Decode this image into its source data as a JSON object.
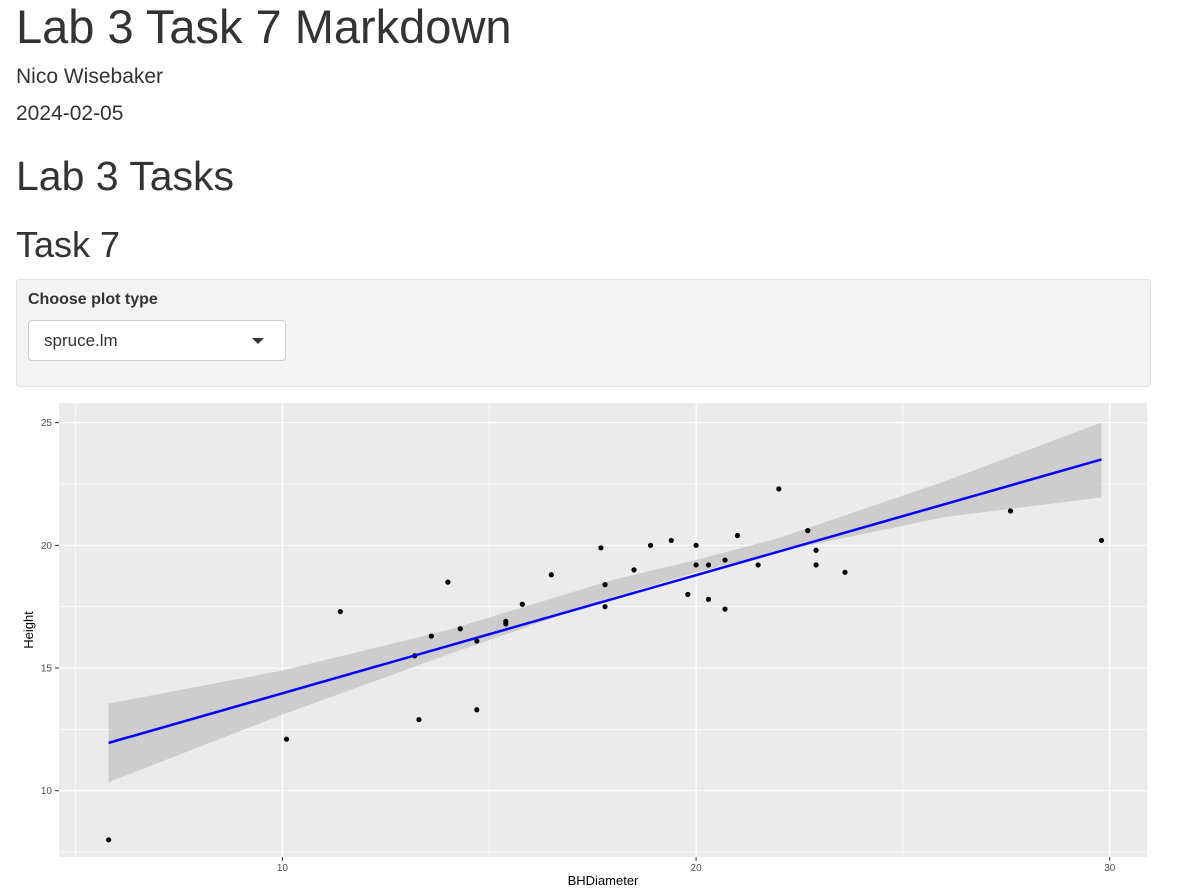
{
  "document": {
    "title": "Lab 3 Task 7 Markdown",
    "author": "Nico Wisebaker",
    "date": "2024-02-05",
    "section_heading": "Lab 3 Tasks",
    "subsection_heading": "Task 7"
  },
  "controls": {
    "plot_type_label": "Choose plot type",
    "plot_type_selected": "spruce.lm"
  },
  "chart_data": {
    "type": "scatter",
    "xlabel": "BHDiameter",
    "ylabel": "Height",
    "xlim": [
      4.6,
      30.9
    ],
    "ylim": [
      7.3,
      25.8
    ],
    "x_ticks": [
      10,
      20,
      30
    ],
    "y_ticks": [
      10,
      15,
      20,
      25
    ],
    "grid": true,
    "points": [
      {
        "x": 5.8,
        "y": 8.0
      },
      {
        "x": 10.1,
        "y": 12.1
      },
      {
        "x": 11.4,
        "y": 17.3
      },
      {
        "x": 13.2,
        "y": 15.5
      },
      {
        "x": 13.3,
        "y": 12.9
      },
      {
        "x": 13.6,
        "y": 16.3
      },
      {
        "x": 14.0,
        "y": 18.5
      },
      {
        "x": 14.3,
        "y": 16.6
      },
      {
        "x": 14.7,
        "y": 16.1
      },
      {
        "x": 14.7,
        "y": 13.3
      },
      {
        "x": 15.4,
        "y": 16.8
      },
      {
        "x": 15.4,
        "y": 16.9
      },
      {
        "x": 15.8,
        "y": 17.6
      },
      {
        "x": 16.5,
        "y": 18.8
      },
      {
        "x": 17.7,
        "y": 19.9
      },
      {
        "x": 17.8,
        "y": 18.4
      },
      {
        "x": 17.8,
        "y": 17.5
      },
      {
        "x": 18.5,
        "y": 19.0
      },
      {
        "x": 18.9,
        "y": 20.0
      },
      {
        "x": 19.4,
        "y": 20.2
      },
      {
        "x": 19.8,
        "y": 18.0
      },
      {
        "x": 20.0,
        "y": 20.0
      },
      {
        "x": 20.0,
        "y": 19.2
      },
      {
        "x": 20.3,
        "y": 19.2
      },
      {
        "x": 20.3,
        "y": 17.8
      },
      {
        "x": 20.7,
        "y": 19.4
      },
      {
        "x": 20.7,
        "y": 17.4
      },
      {
        "x": 21.0,
        "y": 20.4
      },
      {
        "x": 21.5,
        "y": 19.2
      },
      {
        "x": 22.0,
        "y": 22.3
      },
      {
        "x": 22.7,
        "y": 20.6
      },
      {
        "x": 22.9,
        "y": 19.8
      },
      {
        "x": 22.9,
        "y": 19.2
      },
      {
        "x": 23.6,
        "y": 18.9
      },
      {
        "x": 27.6,
        "y": 21.4
      },
      {
        "x": 29.8,
        "y": 20.2
      }
    ],
    "fit_line": {
      "method": "lm",
      "x": [
        5.8,
        29.8
      ],
      "y": [
        11.95,
        23.5
      ],
      "color": "#0000ff"
    },
    "confidence_band": {
      "x": [
        5.8,
        10,
        14,
        18,
        20,
        22,
        26,
        29.8
      ],
      "lower": [
        10.35,
        13.1,
        15.55,
        17.9,
        18.9,
        19.75,
        21.15,
        21.95
      ],
      "upper": [
        13.55,
        14.9,
        16.55,
        18.6,
        19.4,
        20.3,
        22.6,
        25.0
      ],
      "color": "#c8c8c8"
    },
    "colors": {
      "panel": "#ebebeb",
      "grid": "#ffffff",
      "point": "#000000"
    }
  }
}
